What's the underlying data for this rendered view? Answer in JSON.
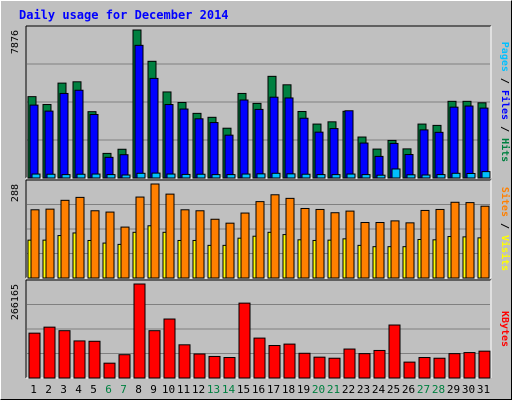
{
  "title": "Daily usage for December 2014",
  "colors": {
    "background": "#c0c0c0",
    "panel": "#c0c0c0",
    "hits": "#008040",
    "files": "#0000ff",
    "pages": "#00c0ff",
    "visits": "#ffff00",
    "sites": "#ff8000",
    "kbytes": "#ff0000",
    "weekday_label": "#000000",
    "weekend_label": "#008040"
  },
  "chart_data": [
    {
      "type": "bar",
      "panel": "hits_files_pages",
      "categories": [
        "1",
        "2",
        "3",
        "4",
        "5",
        "6",
        "7",
        "8",
        "9",
        "10",
        "11",
        "12",
        "13",
        "14",
        "15",
        "16",
        "17",
        "18",
        "19",
        "20",
        "21",
        "22",
        "23",
        "24",
        "25",
        "26",
        "27",
        "28",
        "29",
        "30",
        "31"
      ],
      "weekend_days": [
        "6",
        "7",
        "13",
        "14",
        "20",
        "21",
        "27",
        "28"
      ],
      "max_label": "7876",
      "ylim": [
        0,
        7876
      ],
      "grid": true,
      "series": [
        {
          "name": "Hits",
          "values": [
            4330,
            3910,
            5050,
            5120,
            3530,
            1310,
            1530,
            7876,
            6210,
            4580,
            4020,
            3440,
            3230,
            2650,
            4500,
            3970,
            5410,
            4960,
            3540,
            2870,
            2990,
            3550,
            2180,
            1540,
            2000,
            1550,
            2870,
            2800,
            4080,
            4080,
            4000
          ]
        },
        {
          "name": "Files",
          "values": [
            3880,
            3560,
            4500,
            4670,
            3380,
            1100,
            1240,
            7060,
            5300,
            3910,
            3670,
            3150,
            2950,
            2280,
            4150,
            3650,
            4300,
            4260,
            3180,
            2440,
            2630,
            3580,
            1860,
            1150,
            1840,
            1250,
            2560,
            2430,
            3770,
            3830,
            3720
          ]
        },
        {
          "name": "Pages",
          "values": [
            210,
            200,
            180,
            200,
            210,
            180,
            160,
            250,
            260,
            210,
            190,
            200,
            180,
            180,
            210,
            220,
            250,
            220,
            200,
            180,
            180,
            210,
            180,
            150,
            480,
            170,
            160,
            180,
            250,
            240,
            340
          ]
        }
      ],
      "legend": [
        "Hits",
        "Files",
        "Pages"
      ]
    },
    {
      "type": "bar",
      "panel": "sites_visits",
      "categories": [
        "1",
        "2",
        "3",
        "4",
        "5",
        "6",
        "7",
        "8",
        "9",
        "10",
        "11",
        "12",
        "13",
        "14",
        "15",
        "16",
        "17",
        "18",
        "19",
        "20",
        "21",
        "22",
        "23",
        "24",
        "25",
        "26",
        "27",
        "28",
        "29",
        "30",
        "31"
      ],
      "max_label": "288",
      "ylim": [
        0,
        288
      ],
      "grid": true,
      "series": [
        {
          "name": "Sites",
          "values": [
            209,
            211,
            238,
            247,
            206,
            202,
            156,
            248,
            288,
            257,
            209,
            206,
            180,
            168,
            199,
            234,
            255,
            244,
            213,
            210,
            200,
            205,
            170,
            170,
            175,
            169,
            207,
            210,
            232,
            231,
            220
          ]
        },
        {
          "name": "Visits",
          "values": [
            116,
            116,
            130,
            138,
            115,
            107,
            103,
            140,
            160,
            140,
            115,
            115,
            100,
            100,
            122,
            128,
            140,
            133,
            117,
            115,
            116,
            120,
            100,
            96,
            96,
            96,
            118,
            117,
            127,
            126,
            123
          ]
        }
      ],
      "legend": [
        "Sites",
        "Visits"
      ]
    },
    {
      "type": "bar",
      "panel": "kbytes",
      "categories": [
        "1",
        "2",
        "3",
        "4",
        "5",
        "6",
        "7",
        "8",
        "9",
        "10",
        "11",
        "12",
        "13",
        "14",
        "15",
        "16",
        "17",
        "18",
        "19",
        "20",
        "21",
        "22",
        "23",
        "24",
        "25",
        "26",
        "27",
        "28",
        "29",
        "30",
        "31"
      ],
      "max_label": "266165",
      "ylim": [
        0,
        266165
      ],
      "grid": true,
      "series": [
        {
          "name": "KBytes",
          "values": [
            127000,
            144000,
            134000,
            105000,
            104000,
            42000,
            66000,
            266165,
            134000,
            167000,
            94000,
            68000,
            61000,
            58000,
            212000,
            113000,
            92000,
            96000,
            70000,
            59000,
            56000,
            82000,
            69000,
            78000,
            150000,
            45000,
            58000,
            56000,
            69000,
            72000,
            76000
          ]
        }
      ],
      "legend": [
        "KBytes"
      ]
    }
  ]
}
